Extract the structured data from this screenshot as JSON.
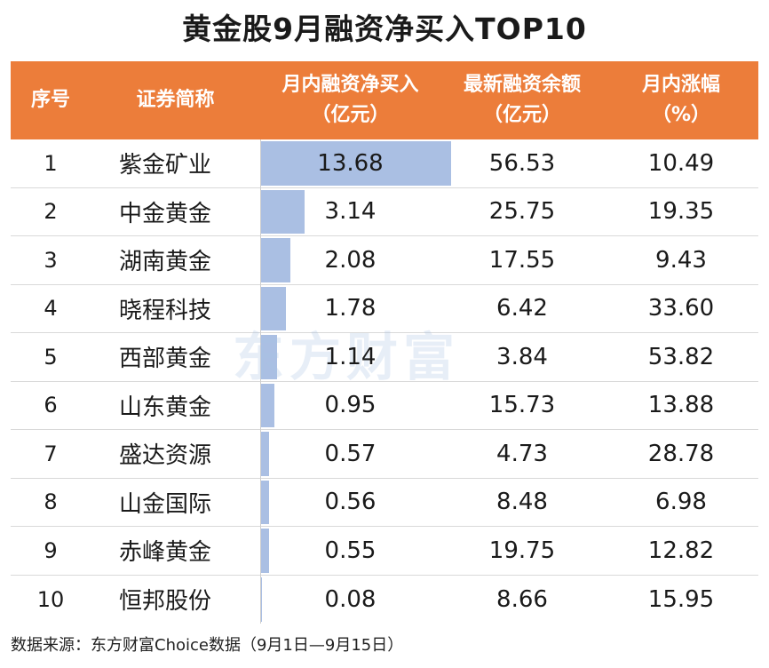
{
  "title": "黄金股9月融资净买入TOP10",
  "headers": {
    "no": "序号",
    "name": "证券简称",
    "buy_line1": "月内融资净买入",
    "buy_line2": "（亿元）",
    "bal_line1": "最新融资余额",
    "bal_line2": "（亿元）",
    "chg_line1": "月内涨幅",
    "chg_line2": "（%）"
  },
  "colors": {
    "header_bg": "#ec7d3a",
    "bar": "#aabfe3"
  },
  "watermark": "东方财富",
  "source": "数据来源：东方财富Choice数据（9月1日—9月15日）",
  "chart_data": {
    "type": "table",
    "columns": [
      "序号",
      "证券简称",
      "月内融资净买入（亿元）",
      "最新融资余额（亿元）",
      "月内涨幅（%）"
    ],
    "rows": [
      {
        "no": "1",
        "name": "紫金矿业",
        "net_buy": "13.68",
        "balance": "56.53",
        "change": "10.49"
      },
      {
        "no": "2",
        "name": "中金黄金",
        "net_buy": "3.14",
        "balance": "25.75",
        "change": "19.35"
      },
      {
        "no": "3",
        "name": "湖南黄金",
        "net_buy": "2.08",
        "balance": "17.55",
        "change": "9.43"
      },
      {
        "no": "4",
        "name": "晓程科技",
        "net_buy": "1.78",
        "balance": "6.42",
        "change": "33.60"
      },
      {
        "no": "5",
        "name": "西部黄金",
        "net_buy": "1.14",
        "balance": "3.84",
        "change": "53.82"
      },
      {
        "no": "6",
        "name": "山东黄金",
        "net_buy": "0.95",
        "balance": "15.73",
        "change": "13.88"
      },
      {
        "no": "7",
        "name": "盛达资源",
        "net_buy": "0.57",
        "balance": "4.73",
        "change": "28.78"
      },
      {
        "no": "8",
        "name": "山金国际",
        "net_buy": "0.56",
        "balance": "8.48",
        "change": "6.98"
      },
      {
        "no": "9",
        "name": "赤峰黄金",
        "net_buy": "0.55",
        "balance": "19.75",
        "change": "12.82"
      },
      {
        "no": "10",
        "name": "恒邦股份",
        "net_buy": "0.08",
        "balance": "8.66",
        "change": "15.95"
      }
    ],
    "bar_column": "net_buy"
  }
}
